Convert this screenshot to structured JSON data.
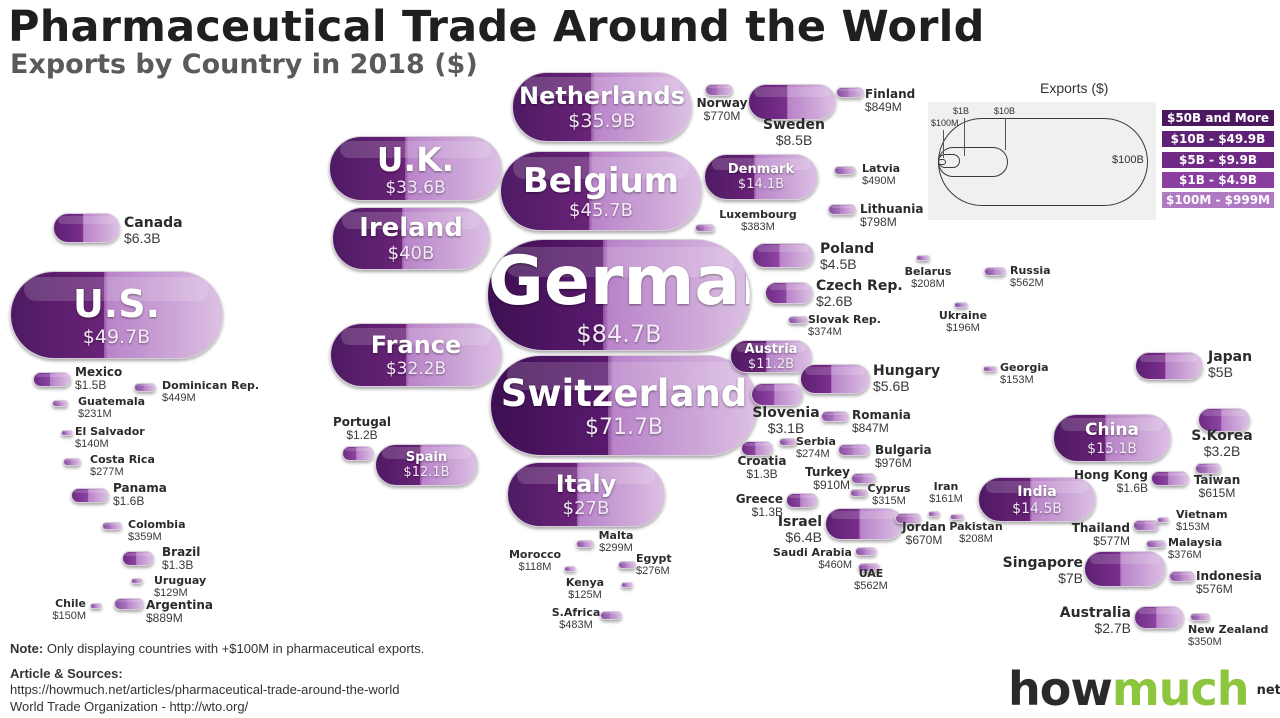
{
  "title": "Pharmaceutical Trade Around the World",
  "subtitle": "Exports by Country in 2018 ($)",
  "legend": {
    "title": "Exports ($)",
    "ticks": [
      "$1B",
      "$10B",
      "$100M",
      "$100B"
    ],
    "categories": [
      {
        "label": "$50B and More",
        "color": "#4b1860"
      },
      {
        "label": "$10B - $49.9B",
        "color": "#5e2175"
      },
      {
        "label": "$5B - $9.9B",
        "color": "#702a86"
      },
      {
        "label": "$1B - $4.9B",
        "color": "#8a3fa0"
      },
      {
        "label": "$100M - $999M",
        "color": "#b07ac3"
      }
    ]
  },
  "countries": [
    {
      "name": "Germany",
      "value": "$84.7B"
    },
    {
      "name": "Switzerland",
      "value": "$71.7B"
    },
    {
      "name": "U.S.",
      "value": "$49.7B"
    },
    {
      "name": "Belgium",
      "value": "$45.7B"
    },
    {
      "name": "Ireland",
      "value": "$40B"
    },
    {
      "name": "Netherlands",
      "value": "$35.9B"
    },
    {
      "name": "U.K.",
      "value": "$33.6B"
    },
    {
      "name": "France",
      "value": "$32.2B"
    },
    {
      "name": "Italy",
      "value": "$27B"
    },
    {
      "name": "China",
      "value": "$15.1B"
    },
    {
      "name": "India",
      "value": "$14.5B"
    },
    {
      "name": "Denmark",
      "value": "$14.1B"
    },
    {
      "name": "Spain",
      "value": "$12.1B"
    },
    {
      "name": "Austria",
      "value": "$11.2B"
    },
    {
      "name": "Sweden",
      "value": "$8.5B"
    },
    {
      "name": "Singapore",
      "value": "$7B"
    },
    {
      "name": "Israel",
      "value": "$6.4B"
    },
    {
      "name": "Canada",
      "value": "$6.3B"
    },
    {
      "name": "Hungary",
      "value": "$5.6B"
    },
    {
      "name": "Japan",
      "value": "$5B"
    },
    {
      "name": "Poland",
      "value": "$4.5B"
    },
    {
      "name": "S.Korea",
      "value": "$3.2B"
    },
    {
      "name": "Slovenia",
      "value": "$3.1B"
    },
    {
      "name": "Australia",
      "value": "$2.7B"
    },
    {
      "name": "Czech Rep.",
      "value": "$2.6B"
    },
    {
      "name": "Panama",
      "value": "$1.6B"
    },
    {
      "name": "Hong Kong",
      "value": "$1.6B"
    },
    {
      "name": "Mexico",
      "value": "$1.5B"
    },
    {
      "name": "Croatia",
      "value": "$1.3B"
    },
    {
      "name": "Greece",
      "value": "$1.3B"
    },
    {
      "name": "Brazil",
      "value": "$1.3B"
    },
    {
      "name": "Portugal",
      "value": "$1.2B"
    },
    {
      "name": "Bulgaria",
      "value": "$976M"
    },
    {
      "name": "Turkey",
      "value": "$910M"
    },
    {
      "name": "Argentina",
      "value": "$889M"
    },
    {
      "name": "Finland",
      "value": "$849M"
    },
    {
      "name": "Romania",
      "value": "$847M"
    },
    {
      "name": "Lithuania",
      "value": "$798M"
    },
    {
      "name": "Norway",
      "value": "$770M"
    },
    {
      "name": "Jordan",
      "value": "$670M"
    },
    {
      "name": "Taiwan",
      "value": "$615M"
    },
    {
      "name": "Thailand",
      "value": "$577M"
    },
    {
      "name": "Indonesia",
      "value": "$576M"
    },
    {
      "name": "Russia",
      "value": "$562M"
    },
    {
      "name": "UAE",
      "value": "$562M"
    },
    {
      "name": "Latvia",
      "value": "$490M"
    },
    {
      "name": "S.Africa",
      "value": "$483M"
    },
    {
      "name": "Saudi Arabia",
      "value": "$460M"
    },
    {
      "name": "Dominican Rep.",
      "value": "$449M"
    },
    {
      "name": "Luxembourg",
      "value": "$383M"
    },
    {
      "name": "Malaysia",
      "value": "$376M"
    },
    {
      "name": "Slovak Rep.",
      "value": "$374M"
    },
    {
      "name": "Colombia",
      "value": "$359M"
    },
    {
      "name": "New Zealand",
      "value": "$350M"
    },
    {
      "name": "Cyprus",
      "value": "$315M"
    },
    {
      "name": "Malta",
      "value": "$299M"
    },
    {
      "name": "Costa Rica",
      "value": "$277M"
    },
    {
      "name": "Egypt",
      "value": "$276M"
    },
    {
      "name": "Serbia",
      "value": "$274M"
    },
    {
      "name": "Guatemala",
      "value": "$231M"
    },
    {
      "name": "Belarus",
      "value": "$208M"
    },
    {
      "name": "Pakistan",
      "value": "$208M"
    },
    {
      "name": "Ukraine",
      "value": "$196M"
    },
    {
      "name": "Georgia",
      "value": "$153M"
    },
    {
      "name": "Vietnam",
      "value": "$153M"
    },
    {
      "name": "Iran",
      "value": "$161M"
    },
    {
      "name": "Chile",
      "value": "$150M"
    },
    {
      "name": "El Salvador",
      "value": "$140M"
    },
    {
      "name": "Uruguay",
      "value": "$129M"
    },
    {
      "name": "Kenya",
      "value": "$125M"
    },
    {
      "name": "Morocco",
      "value": "$118M"
    }
  ],
  "note_label": "Note:",
  "note_text": " Only displaying countries with +$100M in pharmaceutical exports.",
  "sources_heading": "Article & Sources:",
  "source_1": "https://howmuch.net/articles/pharmaceutical-trade-around-the-world",
  "source_2": "World Trade Organization - http://wto.org/",
  "logo": {
    "dark": "how",
    "accent": "much",
    "suffix": "net"
  }
}
